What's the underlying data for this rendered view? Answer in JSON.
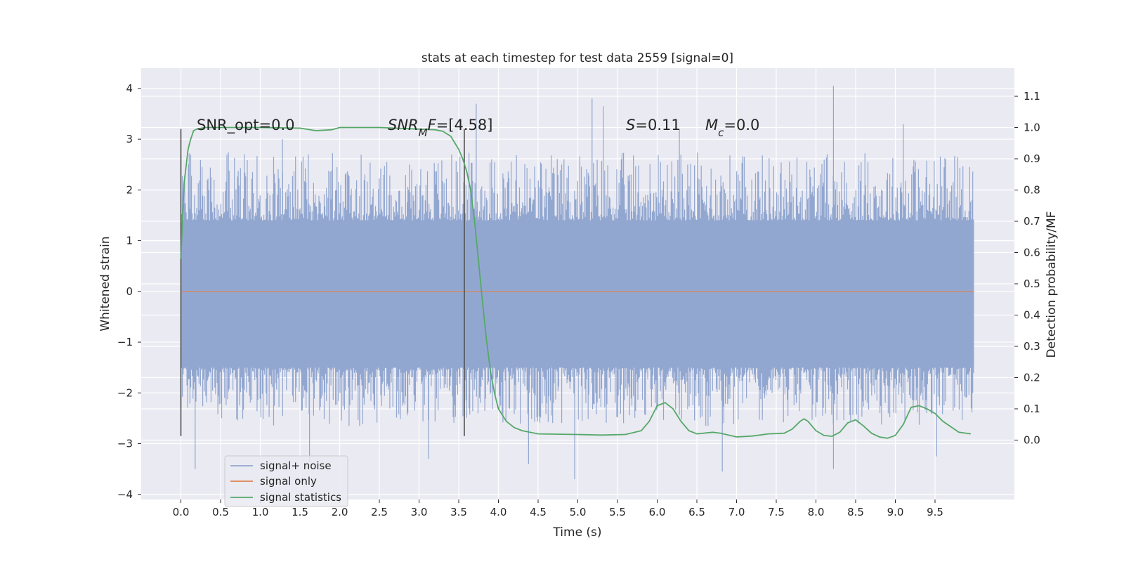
{
  "chart_data": {
    "type": "line",
    "title": "stats at each timestep for test data 2559 [signal=0]",
    "xlabel": "Time (s)",
    "ylabel": "Whitened strain",
    "ylabel_right": "Detection probability/MF",
    "xlim": [
      -0.5,
      10.5
    ],
    "ylim": [
      -4.1,
      4.4
    ],
    "ylim_right": [
      -0.19,
      1.19
    ],
    "x_ticks": [
      "0.0",
      "0.5",
      "1.0",
      "1.5",
      "2.0",
      "2.5",
      "3.0",
      "3.5",
      "4.0",
      "4.5",
      "5.0",
      "5.5",
      "6.0",
      "6.5",
      "7.0",
      "7.5",
      "8.0",
      "8.5",
      "9.0",
      "9.5"
    ],
    "y_ticks": [
      "4",
      "3",
      "2",
      "1",
      "0",
      "−1",
      "−2",
      "−3",
      "−4"
    ],
    "y_ticks_right": [
      "1.1",
      "1.0",
      "0.9",
      "0.8",
      "0.7",
      "0.6",
      "0.5",
      "0.4",
      "0.3",
      "0.2",
      "0.1",
      "0.0"
    ],
    "grid": true,
    "colors": {
      "background": "#eaeaf2",
      "grid": "#ffffff",
      "signal_noise": "#92a7d0",
      "signal_only": "#dd8452",
      "statistics": "#55a868",
      "marker": "#4d4d4d"
    },
    "series": [
      {
        "name": "signal+ noise",
        "kind": "noise-band",
        "x_range": [
          0.0,
          9.99
        ],
        "core_range": [
          -1.5,
          1.4
        ],
        "typical_peak": [
          -2.4,
          2.5
        ],
        "extreme_values": [
          {
            "x": 1.28,
            "y": 3.0
          },
          {
            "x": 3.72,
            "y": 3.7
          },
          {
            "x": 5.18,
            "y": 3.8
          },
          {
            "x": 5.32,
            "y": 3.65
          },
          {
            "x": 6.28,
            "y": 3.2
          },
          {
            "x": 8.22,
            "y": 4.05
          },
          {
            "x": 9.1,
            "y": 3.3
          },
          {
            "x": 0.18,
            "y": -3.5
          },
          {
            "x": 3.12,
            "y": -3.3
          },
          {
            "x": 4.38,
            "y": -3.4
          },
          {
            "x": 4.96,
            "y": -3.7
          },
          {
            "x": 6.82,
            "y": -3.55
          },
          {
            "x": 8.22,
            "y": -3.5
          },
          {
            "x": 9.52,
            "y": -3.25
          },
          {
            "x": 1.62,
            "y": -3.35
          }
        ]
      },
      {
        "name": "signal only",
        "x": [
          0.0,
          9.99
        ],
        "y": [
          0.0,
          0.0
        ]
      },
      {
        "name": "signal statistics",
        "axis": "right",
        "x": [
          0.0,
          0.04,
          0.09,
          0.12,
          0.16,
          0.2,
          0.3,
          0.5,
          1.0,
          1.5,
          1.7,
          1.9,
          2.0,
          2.5,
          3.0,
          3.2,
          3.3,
          3.4,
          3.5,
          3.55,
          3.6,
          3.65,
          3.7,
          3.75,
          3.8,
          3.85,
          3.9,
          3.95,
          4.0,
          4.1,
          4.2,
          4.3,
          4.5,
          5.0,
          5.3,
          5.6,
          5.8,
          5.9,
          6.0,
          6.1,
          6.2,
          6.3,
          6.4,
          6.5,
          6.7,
          6.8,
          7.0,
          7.2,
          7.4,
          7.6,
          7.7,
          7.8,
          7.85,
          7.9,
          8.0,
          8.1,
          8.2,
          8.3,
          8.4,
          8.5,
          8.6,
          8.7,
          8.8,
          8.9,
          9.0,
          9.1,
          9.2,
          9.3,
          9.4,
          9.5,
          9.6,
          9.8,
          9.95
        ],
        "y": [
          0.58,
          0.82,
          0.93,
          0.96,
          0.99,
          0.995,
          1.0,
          1.0,
          1.0,
          0.998,
          0.99,
          0.993,
          1.0,
          1.0,
          0.995,
          0.993,
          0.988,
          0.972,
          0.93,
          0.9,
          0.86,
          0.8,
          0.7,
          0.57,
          0.44,
          0.32,
          0.22,
          0.15,
          0.1,
          0.06,
          0.04,
          0.03,
          0.02,
          0.018,
          0.016,
          0.018,
          0.03,
          0.06,
          0.11,
          0.12,
          0.1,
          0.06,
          0.03,
          0.02,
          0.025,
          0.022,
          0.01,
          0.013,
          0.02,
          0.022,
          0.035,
          0.06,
          0.068,
          0.06,
          0.03,
          0.015,
          0.012,
          0.025,
          0.055,
          0.065,
          0.045,
          0.022,
          0.01,
          0.006,
          0.015,
          0.05,
          0.105,
          0.11,
          0.1,
          0.085,
          0.06,
          0.025,
          0.02
        ]
      }
    ],
    "markers_x": [
      0.0,
      3.57
    ],
    "marker_y_range": [
      -2.85,
      3.2
    ],
    "annotations": [
      {
        "key": "snr_opt",
        "text": "SNR_opt=0.0"
      },
      {
        "key": "snr_mf",
        "text": "SNR_MF=[4.58]"
      },
      {
        "key": "s",
        "text": "S=0.11"
      },
      {
        "key": "mc",
        "text": "M_c=0.0"
      }
    ],
    "legend": {
      "position": "lower-left",
      "entries": [
        "signal+ noise",
        "signal only",
        "signal statistics"
      ]
    }
  }
}
